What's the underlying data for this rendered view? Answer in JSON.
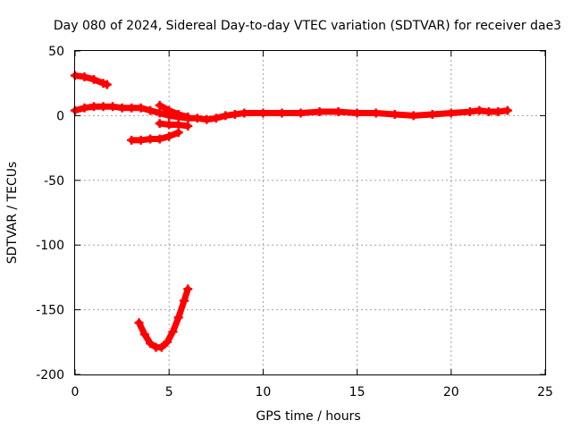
{
  "chart_data": {
    "type": "scatter",
    "title": "Day 080 of 2024, Sidereal Day-to-day VTEC variation (SDTVAR) for receiver dae3",
    "xlabel": "GPS time / hours",
    "ylabel": "SDTVAR / TECUs",
    "xlim": [
      0,
      25
    ],
    "ylim": [
      -200,
      50
    ],
    "xticks": [
      0,
      5,
      10,
      15,
      20,
      25
    ],
    "yticks": [
      50,
      0,
      -50,
      -100,
      -150,
      -200
    ],
    "grid": true,
    "marker_color": "#ff0000",
    "series": [
      {
        "name": "main-track",
        "x": [
          0.0,
          0.5,
          1.0,
          1.5,
          2.0,
          2.5,
          3.0,
          3.5,
          4.0,
          4.5,
          5.0,
          5.5,
          6.0,
          6.5,
          7.0,
          7.5,
          8.0,
          8.5,
          9.0,
          10.0,
          11.0,
          12.0,
          13.0,
          14.0,
          15.0,
          16.0,
          17.0,
          18.0,
          19.0,
          20.0,
          21.0,
          21.5,
          22.0,
          22.5,
          23.0
        ],
        "y": [
          4,
          6,
          7,
          7,
          7,
          6,
          6,
          6,
          4,
          2,
          0,
          -1,
          -2,
          -2,
          -3,
          -2,
          0,
          1,
          2,
          2,
          2,
          2,
          3,
          3,
          2,
          2,
          1,
          0,
          1,
          2,
          3,
          4,
          3,
          3,
          4
        ]
      },
      {
        "name": "early-high",
        "x": [
          0.0,
          0.5,
          1.0,
          1.5,
          1.7
        ],
        "y": [
          31,
          30,
          28,
          25,
          24
        ]
      },
      {
        "name": "early-low",
        "x": [
          3.0,
          3.5,
          4.0,
          4.5,
          5.0,
          5.5
        ],
        "y": [
          -19,
          -19,
          -18,
          -18,
          -16,
          -13
        ]
      },
      {
        "name": "descending-branch",
        "x": [
          4.5,
          5.0,
          5.5,
          6.0
        ],
        "y": [
          8,
          4,
          1,
          -1
        ]
      },
      {
        "name": "mid-segment",
        "x": [
          4.5,
          5.0,
          5.5,
          6.0
        ],
        "y": [
          -6,
          -7,
          -7,
          -8
        ]
      },
      {
        "name": "dip-arc",
        "x": [
          3.4,
          3.7,
          4.0,
          4.3,
          4.6,
          4.9,
          5.2,
          5.5,
          5.8,
          6.0
        ],
        "y": [
          -160,
          -169,
          -176,
          -179,
          -179,
          -175,
          -167,
          -156,
          -143,
          -134
        ]
      }
    ]
  }
}
